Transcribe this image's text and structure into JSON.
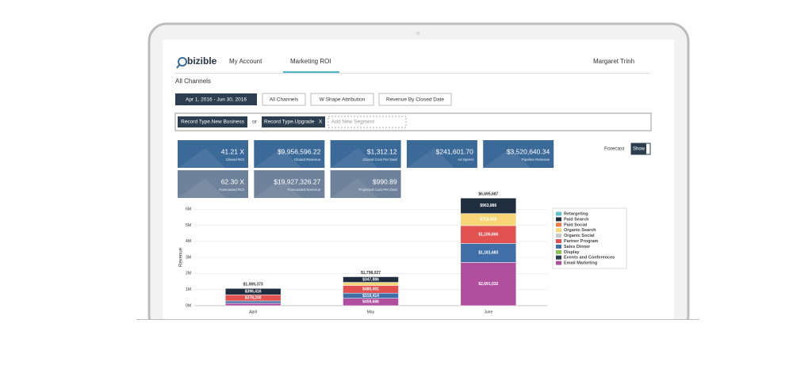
{
  "nav": {
    "logo": "bizible",
    "my_account": "My Account",
    "marketing_roi": "Marketing ROI",
    "user": "Margaret Trinh"
  },
  "page_title": "All Channels",
  "filters": [
    "Apr 1, 2016 - Jun 30, 2016",
    "All Channels",
    "W Shape Attribution",
    "Revenue By Closed Date"
  ],
  "segments": {
    "chip1": "Record Type.New Business",
    "or": "or",
    "chip2": "Record Type.Upgrade",
    "remove": "X",
    "add": "Add New Segment"
  },
  "kpis": [
    {
      "value": "41.21 X",
      "label": "Closed ROI"
    },
    {
      "value": "$9,956,596.22",
      "label": "Closed Revenue"
    },
    {
      "value": "$1,312.12",
      "label": "Closed Cost Per Deal"
    },
    {
      "value": "$241,601.70",
      "label": "Ad Spend"
    },
    {
      "value": "$3,520,640.34",
      "label": "Pipeline Revenue"
    },
    {
      "value": "62.30 X",
      "label": "Forecasted ROI"
    },
    {
      "value": "$19,927,326.27",
      "label": "Forecasted Revenue"
    },
    {
      "value": "$990.89",
      "label": "Projected Cost Per Deal"
    }
  ],
  "forecast": {
    "label": "Forecast",
    "button": "Show"
  },
  "chart_data": {
    "type": "bar",
    "stacked": true,
    "y_label": "Revenue",
    "categories": [
      "April",
      "May",
      "June"
    ],
    "ylim": [
      0,
      6800000
    ],
    "yticks": [
      {
        "value": 0,
        "label": "0M"
      },
      {
        "value": 1000000,
        "label": "1M"
      },
      {
        "value": 2000000,
        "label": "2M"
      },
      {
        "value": 3000000,
        "label": "3M"
      },
      {
        "value": 4000000,
        "label": "4M"
      },
      {
        "value": 5000000,
        "label": "5M"
      },
      {
        "value": 6000000,
        "label": "6M"
      }
    ],
    "grid": true,
    "totals": [
      1069373,
      1798027,
      6695687
    ],
    "total_labels": [
      "$1,069,373",
      "$1,798,027",
      "$6,695,687"
    ],
    "series": [
      {
        "name": "Email Marketing",
        "color": "#b04f9e",
        "values": [
          150000,
          459686,
          2691032
        ],
        "value_labels": [
          null,
          "$459,686",
          "$2,691,032"
        ]
      },
      {
        "name": "Sales Dinner",
        "color": "#3f6fa6",
        "values": [
          144757,
          319414,
          1181683
        ],
        "value_labels": [
          null,
          "$319,414",
          "$1,181,683"
        ]
      },
      {
        "name": "Partner Program",
        "color": "#e0514f",
        "values": [
          378200,
          480491,
          1106666
        ],
        "value_labels": [
          "$378,200",
          "$480,491",
          "$1,106,666"
        ]
      },
      {
        "name": "Organic Search",
        "color": "#f6d676",
        "values": [
          null,
          190550,
          752420
        ],
        "value_labels": [
          null,
          null,
          "$752,420"
        ]
      },
      {
        "name": "Paid Search",
        "color": "#1f2d3f",
        "values": [
          396416,
          347886,
          963886
        ],
        "value_labels": [
          "$396,416",
          "$347,886",
          "$963,886"
        ]
      },
      {
        "name": "Retargeting",
        "color": "#5bc3c9",
        "values": [
          null,
          null,
          null
        ]
      },
      {
        "name": "Paid Social",
        "color": "#ee7a45",
        "values": [
          null,
          null,
          null
        ]
      },
      {
        "name": "Organic Social",
        "color": "#c8c8c8",
        "values": [
          null,
          null,
          null
        ]
      },
      {
        "name": "Display",
        "color": "#8cc152",
        "values": [
          null,
          null,
          null
        ]
      },
      {
        "name": "Events and Conferences",
        "color": "#2c3e50",
        "values": [
          null,
          null,
          null
        ]
      }
    ],
    "legend_order": [
      5,
      4,
      6,
      3,
      7,
      2,
      1,
      8,
      9,
      0
    ]
  }
}
